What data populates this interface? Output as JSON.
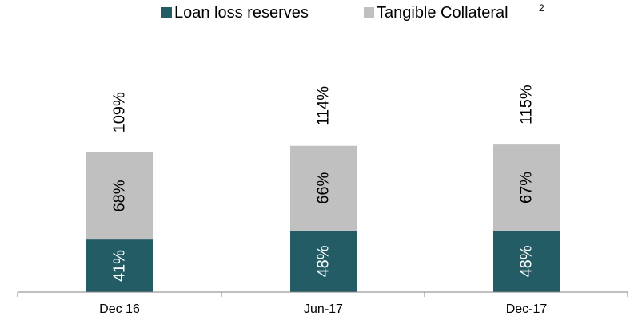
{
  "chart_data": {
    "type": "bar",
    "stacked": true,
    "categories": [
      "Dec 16",
      "Jun-17",
      "Dec-17"
    ],
    "series": [
      {
        "name": "Loan loss reserves",
        "values": [
          41,
          48,
          48
        ],
        "labels": [
          "41%",
          "48%",
          "48%"
        ],
        "color": "#245c66",
        "label_color": "#ffffff"
      },
      {
        "name": "Tangible Collateral",
        "name_superscript": "2",
        "values": [
          68,
          66,
          67
        ],
        "labels": [
          "68%",
          "66%",
          "67%"
        ],
        "color": "#c0c0c0",
        "label_color": "#000000"
      }
    ],
    "totals": [
      "109%",
      "114%",
      "115%"
    ],
    "title": "",
    "xlabel": "",
    "ylabel": "",
    "legend_position": "top-right",
    "grid": false
  }
}
